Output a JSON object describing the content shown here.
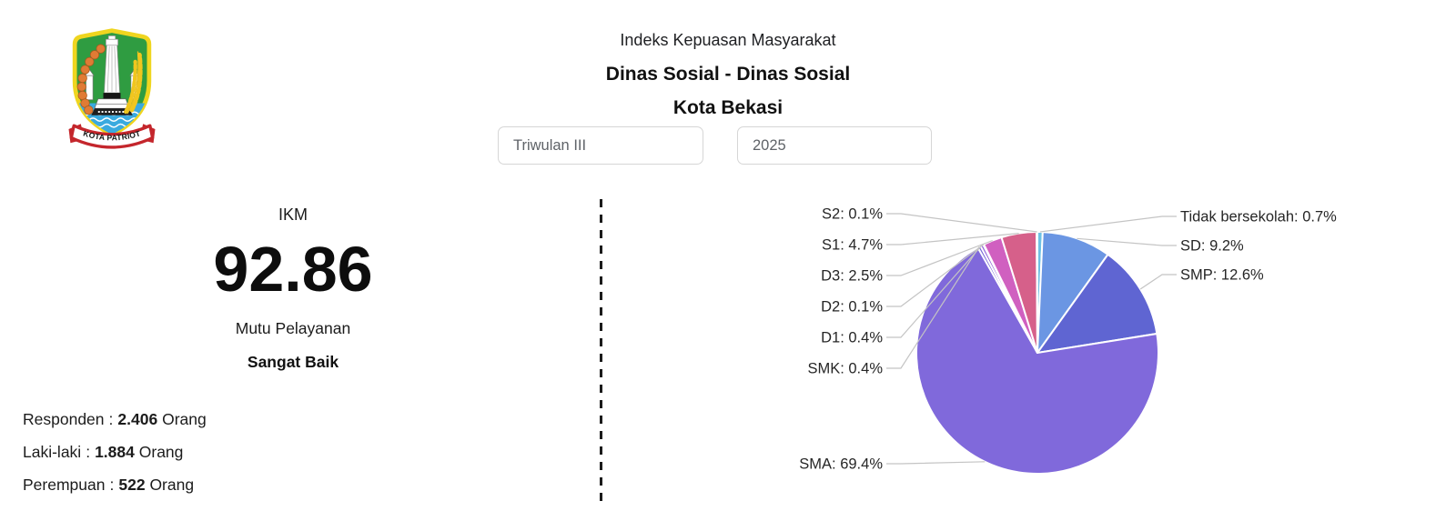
{
  "logo": {
    "banner_text": "KOTA PATRIOT"
  },
  "header": {
    "title": "Indeks Kepuasan Masyarakat",
    "agency": "Dinas Sosial - Dinas Sosial",
    "city": "Kota Bekasi"
  },
  "filters": {
    "period": {
      "value": "Triwulan III"
    },
    "year": {
      "value": "2025"
    }
  },
  "ikm": {
    "label": "IKM",
    "score": "92.86",
    "quality_label": "Mutu Pelayanan",
    "quality_value": "Sangat Baik"
  },
  "respondents": {
    "sep": ":",
    "total": {
      "label": "Responden",
      "value": "2.406",
      "unit": "Orang"
    },
    "male": {
      "label": "Laki-laki",
      "value": "1.884",
      "unit": "Orang"
    },
    "female": {
      "label": "Perempuan",
      "value": "522",
      "unit": "Orang"
    }
  },
  "chart_data": {
    "type": "pie",
    "categories": [
      "Tidak bersekolah",
      "SD",
      "SMP",
      "SMA",
      "SMK",
      "D1",
      "D2",
      "D3",
      "S1",
      "S2"
    ],
    "values": [
      0.7,
      9.2,
      12.6,
      69.4,
      0.4,
      0.4,
      0.1,
      2.5,
      4.7,
      0.1
    ],
    "unit": "%",
    "colors": [
      "#6EC1E4",
      "#6B96E3",
      "#5F65D2",
      "#8069DB",
      "#7163D6",
      "#8E5FD8",
      "#A765DC",
      "#D060C0",
      "#D6608A",
      "#52C5B8"
    ],
    "start_angle_deg": 0,
    "direction": "clockwise",
    "label_format": "{category}: {value}%",
    "slice_border_color": "#ffffff",
    "leader_line_color": "#c4c4c4",
    "legend_position": "callout-labels"
  }
}
